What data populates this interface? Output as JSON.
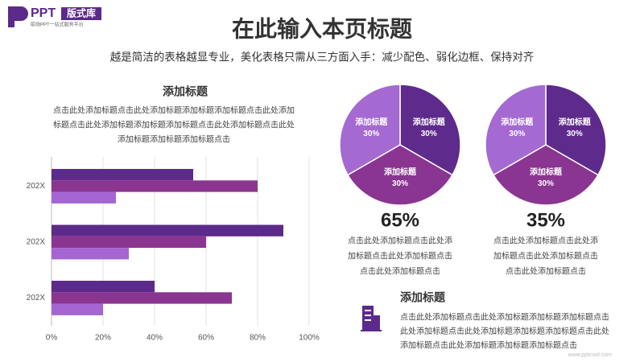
{
  "logo": {
    "brand": "PPT",
    "badge": "版式库",
    "tagline": "职场PPT一站式服务平台"
  },
  "title": "在此输入本页标题",
  "subtitle": "越是简洁的表格越显专业，美化表格只需从三方面入手：减少配色、弱化边框、保持对齐",
  "watermark": "www.pptcool.com",
  "chart_data": [
    {
      "type": "bar",
      "orientation": "horizontal",
      "title": "添加标题",
      "description": [
        "点击此处添加标题点击此处添加标题添加标题添加标题点击此处添加",
        "标题点击此处添加标题添加标题添加标题点击此处添加标题点击此处",
        "添加标题添加标题添加标题点击"
      ],
      "categories": [
        "202X",
        "202X",
        "202X"
      ],
      "series": [
        {
          "color": "#5c2a8a",
          "values": [
            55,
            90,
            40
          ]
        },
        {
          "color": "#8a3590",
          "values": [
            80,
            60,
            70
          ]
        },
        {
          "color": "#a466d2",
          "values": [
            25,
            30,
            20
          ]
        }
      ],
      "xlim": [
        0,
        100
      ],
      "xticks": [
        {
          "value": 0,
          "label": "0%"
        },
        {
          "value": 20,
          "label": "20%"
        },
        {
          "value": 40,
          "label": "40%"
        },
        {
          "value": 60,
          "label": "60%"
        },
        {
          "value": 80,
          "label": "80%"
        },
        {
          "value": 100,
          "label": "100%"
        }
      ],
      "grid": true
    },
    {
      "type": "pie",
      "categories": [
        "添加标题",
        "添加标题",
        "添加标题"
      ],
      "values": [
        30,
        30,
        30
      ],
      "value_labels": [
        "30%",
        "30%",
        "30%"
      ],
      "colors": [
        "#5e2a8c",
        "#8a3592",
        "#a46ad2"
      ],
      "annotation": "65%",
      "description": [
        "点击此处添加标题点击此处添",
        "加标题点击此处添加标题点击",
        "点击此处添加标题点击"
      ]
    },
    {
      "type": "pie",
      "categories": [
        "添加标题",
        "添加标题",
        "添加标题"
      ],
      "values": [
        30,
        30,
        30
      ],
      "value_labels": [
        "30%",
        "30%",
        "30%"
      ],
      "colors": [
        "#5e2a8c",
        "#8a3592",
        "#a46ad2"
      ],
      "annotation": "35%",
      "description": [
        "点击此处添加标题点击此处添",
        "加标题点击此处添加标题点击",
        "点击此处添加标题点击"
      ]
    }
  ],
  "info": {
    "title": "添加标题",
    "lines": [
      "点击此处添加标题点击此处添加标题添加标题添加标题点击",
      "此处添加标题点击此处添加标题添加标题添加标题点击此处",
      "添加标题点击此处添加标题添加标题添加标题点击"
    ]
  }
}
